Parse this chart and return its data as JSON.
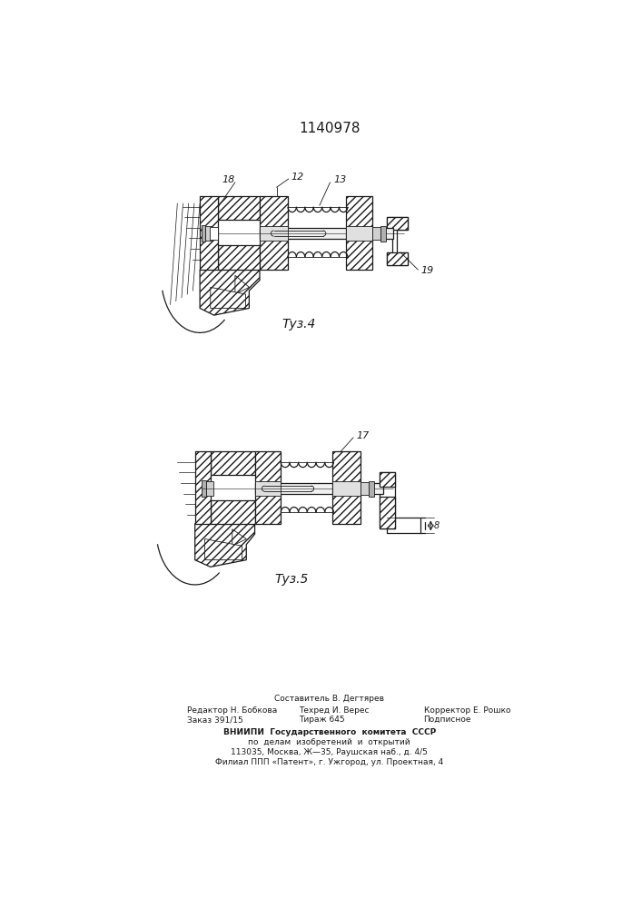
{
  "title": "1140978",
  "fig1_caption": "Τуз.4",
  "fig2_caption": "Τуз.5",
  "label_12": "12",
  "label_13": "13",
  "label_18": "18",
  "label_19": "19",
  "label_17": "17",
  "label_8": "8",
  "footer_line0": "Составитель В. Дегтярев",
  "footer_line1_left": "Редактор Н. Бобкова",
  "footer_line1_mid": "Техред И. Верес",
  "footer_line1_right": "Корректор Е. Рошко",
  "footer_line2_left": "Заказ 391/15",
  "footer_line2_mid": "Тираж 645",
  "footer_line2_right": "Подписное",
  "footer_line3": "ВНИИПИ  Государственного  комитета  СССР",
  "footer_line4": "по  делам  изобретений  и  открытий",
  "footer_line5": "113035, Москва, Ж—35, Раушская наб., д. 4/5",
  "footer_line6": "Филиал ППП «Патент», г. Ужгород, ул. Проектная, 4"
}
